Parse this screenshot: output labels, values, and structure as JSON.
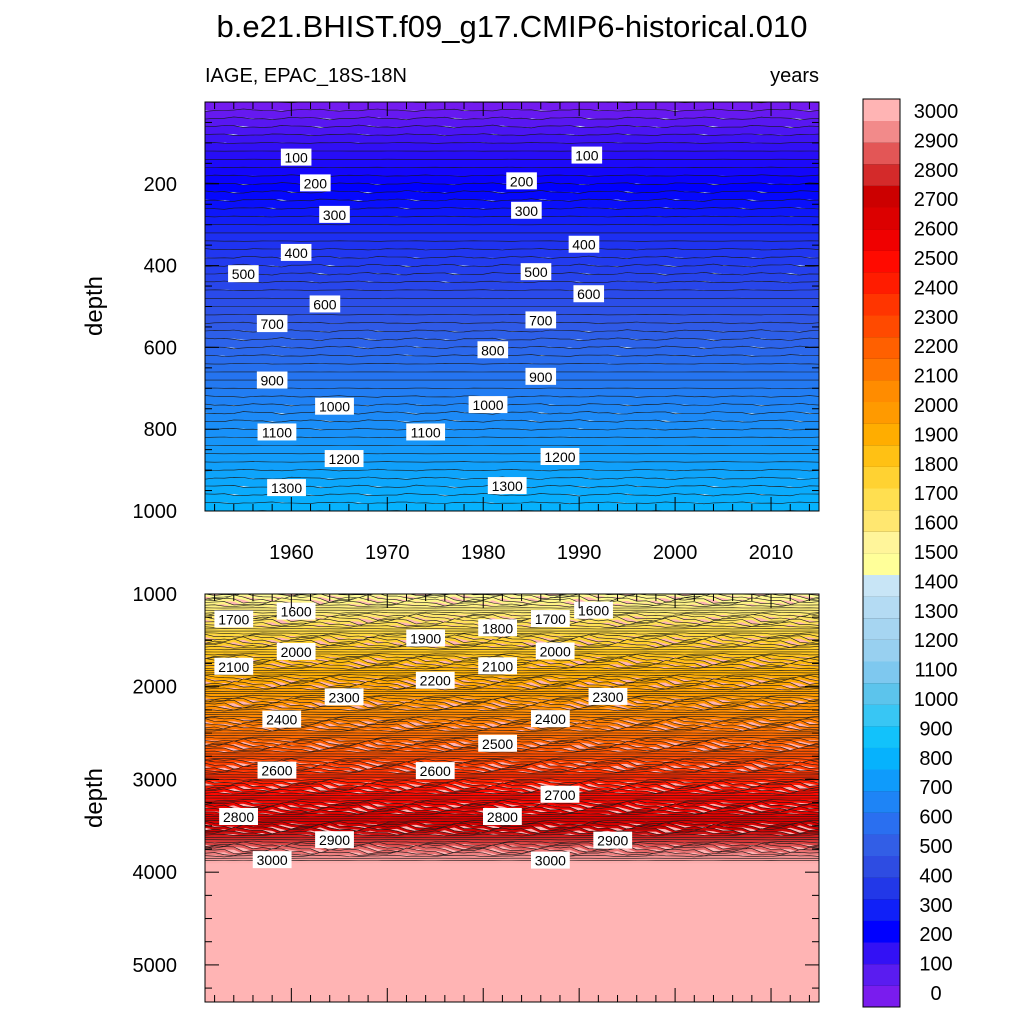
{
  "chart_data": {
    "type": "contour",
    "title": "b.e21.BHIST.f09_g17.CMIP6-historical.010",
    "left_string": "IAGE, EPAC_18S-18N",
    "right_string": "years",
    "ylabel": "depth",
    "x_ticks": [
      "1960",
      "1970",
      "1980",
      "1990",
      "2000",
      "2010"
    ],
    "x_tick_values": [
      1960,
      1970,
      1980,
      1990,
      2000,
      2010
    ],
    "xlim": [
      1951,
      2015
    ],
    "panels": [
      {
        "name": "upper",
        "ylim": [
          0,
          1000
        ],
        "y_ticks": [
          "200",
          "400",
          "600",
          "800",
          "1000"
        ],
        "y_tick_values": [
          200,
          400,
          600,
          800,
          1000
        ],
        "contour_labels": [
          {
            "text": "100",
            "x": 1960.5,
            "y": 136
          },
          {
            "text": "100",
            "x": 1990.8,
            "y": 131
          },
          {
            "text": "200",
            "x": 1962.5,
            "y": 199
          },
          {
            "text": "200",
            "x": 1984.0,
            "y": 194
          },
          {
            "text": "300",
            "x": 1964.5,
            "y": 276
          },
          {
            "text": "300",
            "x": 1984.5,
            "y": 266
          },
          {
            "text": "400",
            "x": 1960.5,
            "y": 369
          },
          {
            "text": "400",
            "x": 1990.5,
            "y": 349
          },
          {
            "text": "500",
            "x": 1955.0,
            "y": 421
          },
          {
            "text": "500",
            "x": 1985.5,
            "y": 416
          },
          {
            "text": "600",
            "x": 1963.5,
            "y": 495
          },
          {
            "text": "600",
            "x": 1991.0,
            "y": 470
          },
          {
            "text": "700",
            "x": 1958.0,
            "y": 543
          },
          {
            "text": "700",
            "x": 1986.0,
            "y": 534
          },
          {
            "text": "800",
            "x": 1981.0,
            "y": 607
          },
          {
            "text": "900",
            "x": 1958.0,
            "y": 681
          },
          {
            "text": "900",
            "x": 1986.0,
            "y": 672
          },
          {
            "text": "1000",
            "x": 1964.5,
            "y": 745
          },
          {
            "text": "1000",
            "x": 1980.5,
            "y": 741
          },
          {
            "text": "1100",
            "x": 1958.5,
            "y": 808
          },
          {
            "text": "1100",
            "x": 1974.0,
            "y": 808
          },
          {
            "text": "1200",
            "x": 1965.5,
            "y": 873
          },
          {
            "text": "1200",
            "x": 1988.0,
            "y": 868
          },
          {
            "text": "1300",
            "x": 1959.5,
            "y": 944
          },
          {
            "text": "1300",
            "x": 1982.5,
            "y": 939
          }
        ]
      },
      {
        "name": "lower",
        "ylim": [
          1000,
          5400
        ],
        "y_ticks": [
          "1000",
          "2000",
          "3000",
          "4000",
          "5000"
        ],
        "y_tick_values": [
          1000,
          2000,
          3000,
          4000,
          5000
        ],
        "contour_labels": [
          {
            "text": "1600",
            "x": 1960.5,
            "y": 1190
          },
          {
            "text": "1600",
            "x": 1991.5,
            "y": 1180
          },
          {
            "text": "1700",
            "x": 1954.0,
            "y": 1275
          },
          {
            "text": "1700",
            "x": 1987.0,
            "y": 1270
          },
          {
            "text": "1800",
            "x": 1981.5,
            "y": 1370
          },
          {
            "text": "1900",
            "x": 1974.0,
            "y": 1480
          },
          {
            "text": "2000",
            "x": 1960.5,
            "y": 1625
          },
          {
            "text": "2000",
            "x": 1987.5,
            "y": 1620
          },
          {
            "text": "2100",
            "x": 1954.0,
            "y": 1785
          },
          {
            "text": "2100",
            "x": 1981.5,
            "y": 1780
          },
          {
            "text": "2200",
            "x": 1975.0,
            "y": 1935
          },
          {
            "text": "2300",
            "x": 1965.5,
            "y": 2115
          },
          {
            "text": "2300",
            "x": 1993.0,
            "y": 2110
          },
          {
            "text": "2400",
            "x": 1959.0,
            "y": 2355
          },
          {
            "text": "2400",
            "x": 1987.0,
            "y": 2350
          },
          {
            "text": "2500",
            "x": 1981.5,
            "y": 2615
          },
          {
            "text": "2600",
            "x": 1958.5,
            "y": 2905
          },
          {
            "text": "2600",
            "x": 1975.0,
            "y": 2910
          },
          {
            "text": "2700",
            "x": 1988.0,
            "y": 3165
          },
          {
            "text": "2800",
            "x": 1954.5,
            "y": 3405
          },
          {
            "text": "2800",
            "x": 1982.0,
            "y": 3405
          },
          {
            "text": "2900",
            "x": 1964.5,
            "y": 3655
          },
          {
            "text": "2900",
            "x": 1993.5,
            "y": 3660
          },
          {
            "text": "3000",
            "x": 1958.0,
            "y": 3870
          },
          {
            "text": "3000",
            "x": 1987.0,
            "y": 3875
          }
        ]
      }
    ],
    "colorbar": {
      "levels": [
        "0",
        "100",
        "200",
        "300",
        "400",
        "500",
        "600",
        "700",
        "800",
        "900",
        "1000",
        "1100",
        "1200",
        "1300",
        "1400",
        "1500",
        "1600",
        "1700",
        "1800",
        "1900",
        "2000",
        "2100",
        "2200",
        "2300",
        "2400",
        "2500",
        "2600",
        "2700",
        "2800",
        "2900",
        "3000"
      ],
      "colors": [
        "#7a1cee",
        "#5a1cf0",
        "#3311f5",
        "#0000ff",
        "#1020f8",
        "#2238e8",
        "#2e4ce2",
        "#325ee6",
        "#2a6ff0",
        "#1e84f6",
        "#0f9bfb",
        "#06b2fd",
        "#12c2fb",
        "#38c6f4",
        "#5cc4ec",
        "#7ec8ef",
        "#98d0f0",
        "#a6d5f1",
        "#b4dbf3",
        "#c8e5f6",
        "#ffff99",
        "#fff59a",
        "#ffe770",
        "#ffdf50",
        "#ffd232",
        "#ffc114",
        "#ffad00",
        "#ff9a00",
        "#ff8c00",
        "#ff7500",
        "#ff6000",
        "#ff4a00",
        "#ff3500",
        "#ff1c00",
        "#ff0a00",
        "#f00000",
        "#dc0000",
        "#cc0000",
        "#d42a2a",
        "#e35656",
        "#f28a8a",
        "#ffb4b4"
      ]
    }
  }
}
